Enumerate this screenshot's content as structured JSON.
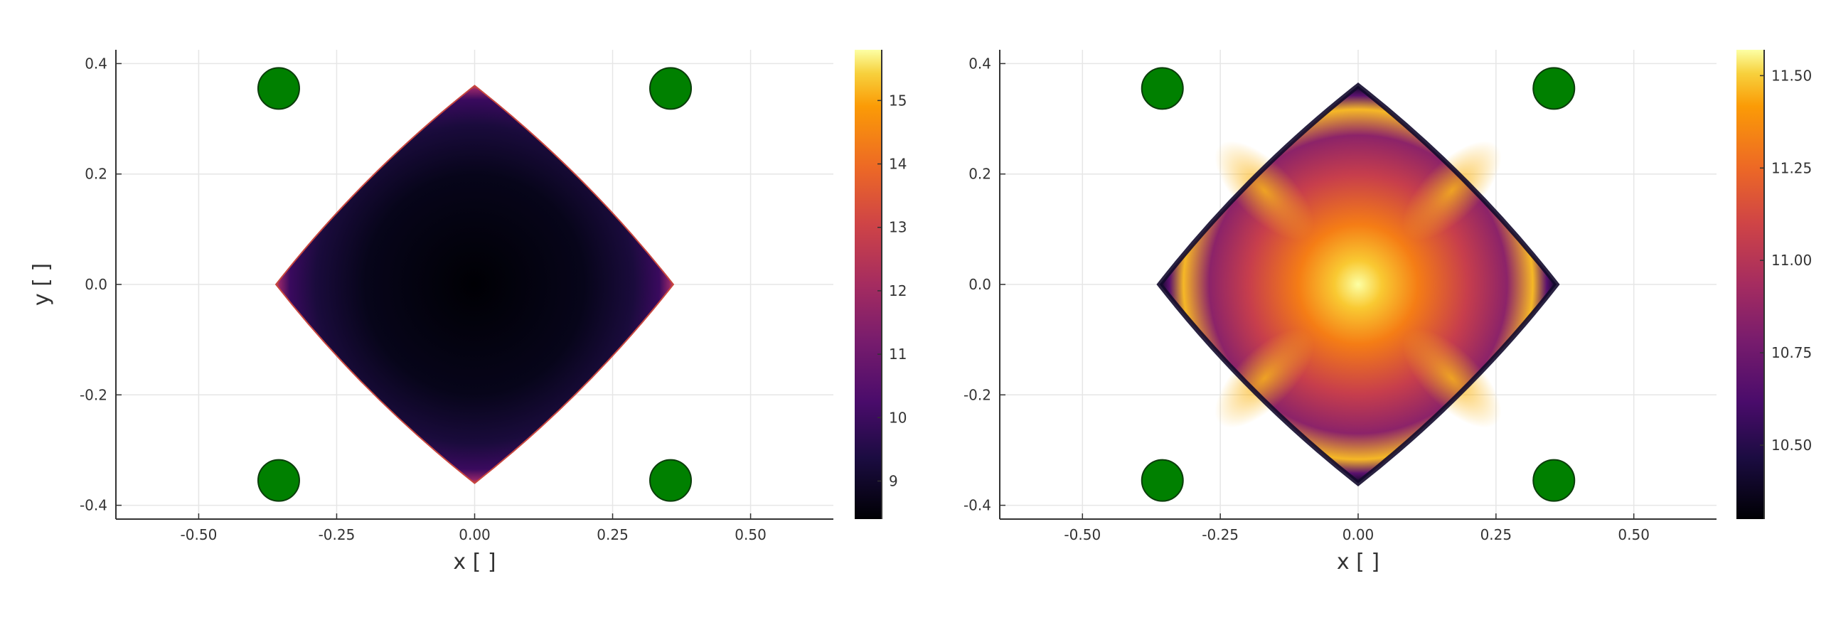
{
  "chart_data": [
    {
      "type": "heatmap",
      "title": "",
      "xlabel": "x [ ]",
      "ylabel": "y [ ]",
      "xlim": [
        -0.65,
        0.65
      ],
      "ylim": [
        -0.425,
        0.425
      ],
      "xticks": [
        -0.5,
        -0.25,
        0.0,
        0.25,
        0.5
      ],
      "xtick_labels": [
        "-0.50",
        "-0.25",
        "0.00",
        "0.25",
        "0.50"
      ],
      "yticks": [
        0.4,
        0.2,
        0.0,
        -0.2,
        -0.4
      ],
      "ytick_labels": [
        "0.4",
        "0.2",
        "0.0",
        "-0.2",
        "-0.4"
      ],
      "grid": true,
      "colormap": "inferno",
      "colorbar": {
        "range": [
          8.4,
          15.8
        ],
        "ticks": [
          15,
          14,
          13,
          12,
          11,
          10,
          9
        ],
        "tick_labels": [
          "15",
          "14",
          "13",
          "12",
          "11",
          "10",
          "9"
        ]
      },
      "region": {
        "shape": "rounded-diamond",
        "vertices": [
          [
            0.0,
            0.36
          ],
          [
            0.36,
            0.0
          ],
          [
            0.0,
            -0.36
          ],
          [
            -0.36,
            0.0
          ]
        ],
        "center_value": 8.4,
        "edge_value": 12.5
      },
      "markers": {
        "color": "#008000",
        "points": [
          [
            -0.355,
            0.355
          ],
          [
            0.355,
            0.355
          ],
          [
            -0.355,
            -0.355
          ],
          [
            0.355,
            -0.355
          ]
        ]
      }
    },
    {
      "type": "heatmap",
      "title": "",
      "xlabel": "x [ ]",
      "ylabel": "",
      "xlim": [
        -0.65,
        0.65
      ],
      "ylim": [
        -0.425,
        0.425
      ],
      "xticks": [
        -0.5,
        -0.25,
        0.0,
        0.25,
        0.5
      ],
      "xtick_labels": [
        "-0.50",
        "-0.25",
        "0.00",
        "0.25",
        "0.50"
      ],
      "yticks": [
        0.4,
        0.2,
        0.0,
        -0.2,
        -0.4
      ],
      "ytick_labels": [
        "0.4",
        "0.2",
        "0.0",
        "-0.2",
        "-0.4"
      ],
      "grid": true,
      "colormap": "inferno",
      "colorbar": {
        "range": [
          10.3,
          11.57
        ],
        "ticks": [
          11.5,
          11.25,
          11.0,
          10.75,
          10.5
        ],
        "tick_labels": [
          "11.50",
          "11.25",
          "11.00",
          "10.75",
          "10.50"
        ]
      },
      "region": {
        "shape": "rounded-diamond",
        "vertices": [
          [
            0.0,
            0.36
          ],
          [
            0.36,
            0.0
          ],
          [
            0.0,
            -0.36
          ],
          [
            -0.36,
            0.0
          ]
        ],
        "center_value": 11.55,
        "edge_value": 10.3
      },
      "markers": {
        "color": "#008000",
        "points": [
          [
            -0.355,
            0.355
          ],
          [
            0.355,
            0.355
          ],
          [
            -0.355,
            -0.355
          ],
          [
            0.355,
            -0.355
          ]
        ]
      }
    }
  ]
}
